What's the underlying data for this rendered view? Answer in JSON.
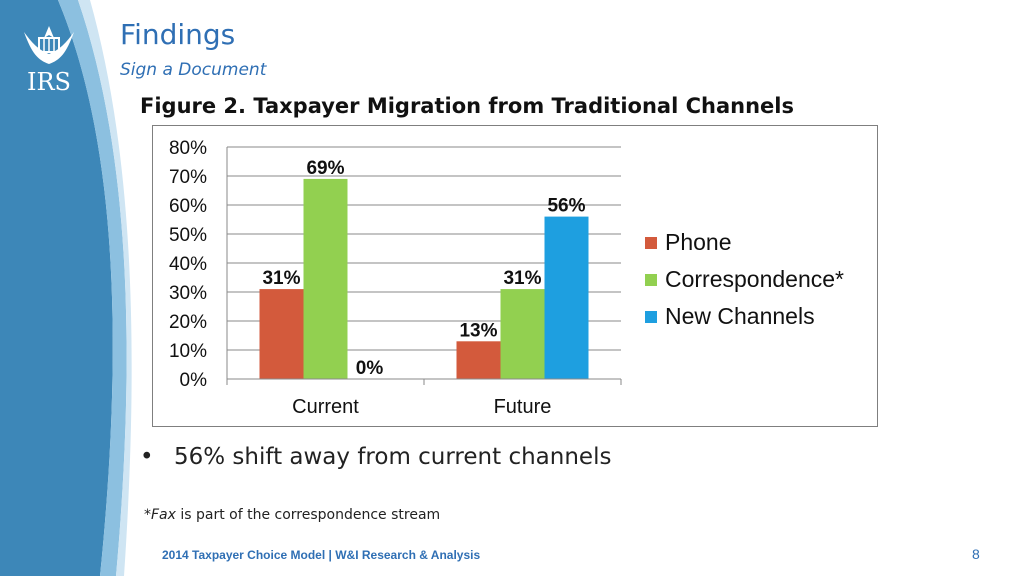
{
  "slide": {
    "title": "Findings",
    "subtitle": "Sign a Document",
    "figure_title": "Figure 2. Taxpayer Migration from Traditional Channels",
    "logo_text": "IRS",
    "bullet": "56% shift away from current channels",
    "footnote_prefix": "*",
    "footnote_italic": "Fax",
    "footnote_rest": " is part of the correspondence stream",
    "footer_source": "2014 Taxpayer Choice Model | W&I Research & Analysis",
    "page_number": "8"
  },
  "colors": {
    "accent": "#2f6fb4",
    "side_band": "#3d87b8",
    "phone": "#d35a3c",
    "correspondence": "#92d050",
    "new_channels": "#1e9fe0"
  },
  "chart_data": {
    "type": "bar",
    "categories": [
      "Current",
      "Future"
    ],
    "series": [
      {
        "name": "Phone",
        "values": [
          31,
          13
        ],
        "labels": [
          "31%",
          "13%"
        ],
        "color": "#d35a3c"
      },
      {
        "name": "Correspondence*",
        "values": [
          69,
          31
        ],
        "labels": [
          "69%",
          "31%"
        ],
        "color": "#92d050"
      },
      {
        "name": "New Channels",
        "values": [
          0,
          56
        ],
        "labels": [
          "0%",
          "56%"
        ],
        "color": "#1e9fe0"
      }
    ],
    "yticks": [
      "0%",
      "10%",
      "20%",
      "30%",
      "40%",
      "50%",
      "60%",
      "70%",
      "80%"
    ],
    "ylim": [
      0,
      80
    ],
    "grid": true,
    "legend_position": "right"
  }
}
